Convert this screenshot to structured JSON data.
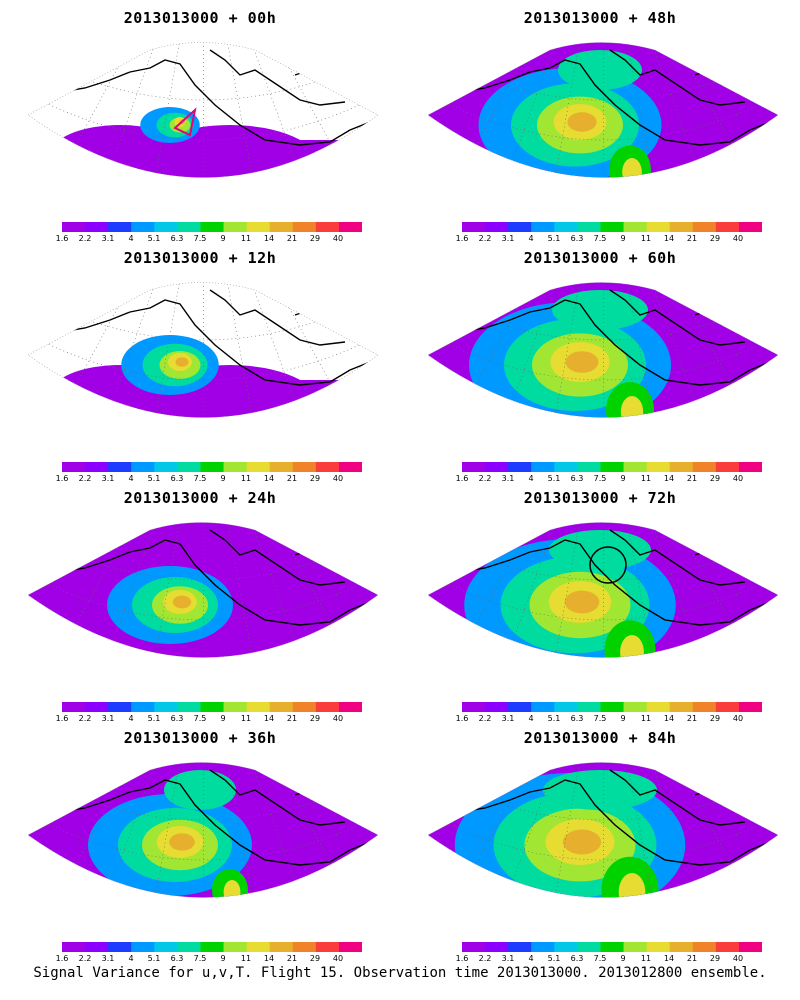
{
  "figure": {
    "footer": "Signal Variance for u,v,T. Flight 15. Observation time 2013013000. 2013012800 ensemble.",
    "panels": [
      {
        "title": "2013013000 + 00h",
        "intensity": 0.05,
        "markers": "flight-track"
      },
      {
        "title": "2013013000 + 12h",
        "intensity": 0.25,
        "markers": "none"
      },
      {
        "title": "2013013000 + 24h",
        "intensity": 0.4,
        "markers": "none"
      },
      {
        "title": "2013013000 + 36h",
        "intensity": 0.6,
        "markers": "none"
      },
      {
        "title": "2013013000 + 48h",
        "intensity": 0.7,
        "markers": "none"
      },
      {
        "title": "2013013000 + 60h",
        "intensity": 0.8,
        "markers": "none"
      },
      {
        "title": "2013013000 + 72h",
        "intensity": 0.85,
        "markers": "circle"
      },
      {
        "title": "2013013000 + 84h",
        "intensity": 0.95,
        "markers": "none"
      }
    ]
  },
  "colorbar": {
    "levels": [
      "1.6",
      "2.2",
      "3.1",
      "4",
      "5.1",
      "6.3",
      "7.5",
      "9",
      "11",
      "14",
      "21",
      "29",
      "40"
    ],
    "colors": [
      "#a100e6",
      "#8c00ff",
      "#1e3cff",
      "#0099ff",
      "#00c8e6",
      "#00dca0",
      "#00d200",
      "#a0e632",
      "#e6dc32",
      "#e6af2d",
      "#f08228",
      "#fa3c3c",
      "#f00082"
    ]
  }
}
